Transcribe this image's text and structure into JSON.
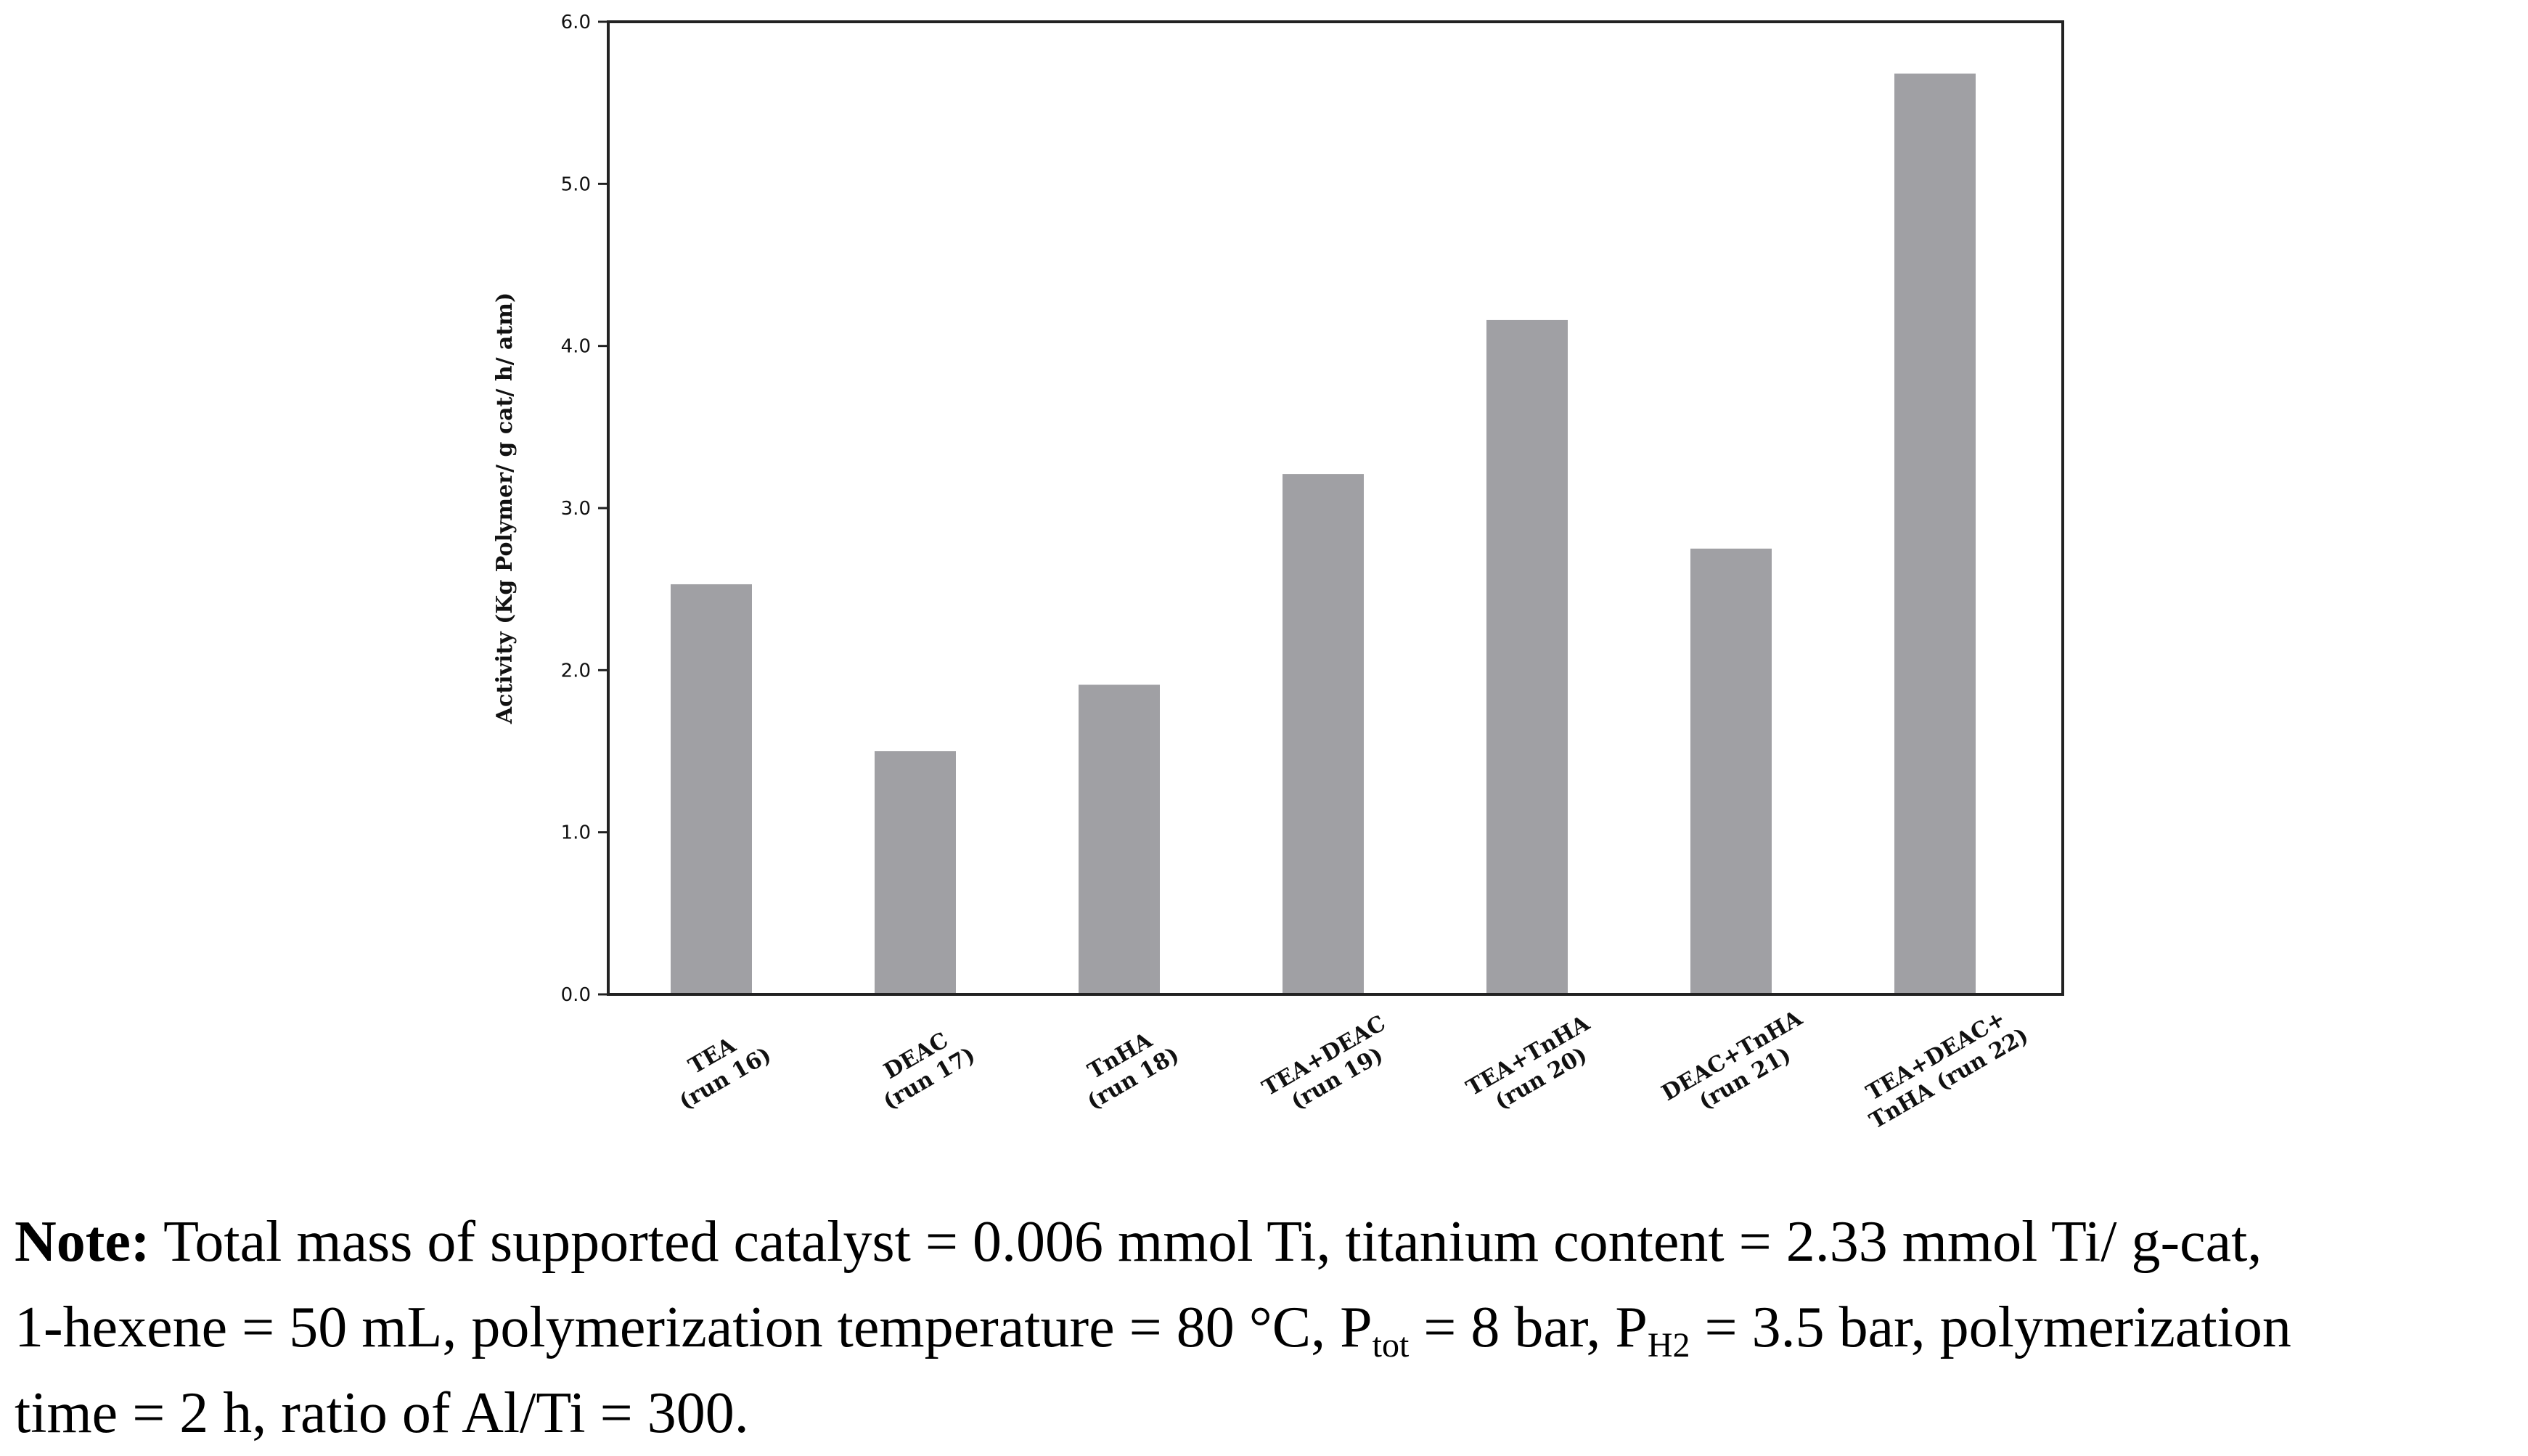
{
  "chart_data": {
    "type": "bar",
    "categories": [
      [
        "TEA",
        "(run 16)"
      ],
      [
        "DEAC",
        "(run 17)"
      ],
      [
        "TnHA",
        "(run 18)"
      ],
      [
        "TEA+DEAC",
        "(run 19)"
      ],
      [
        "TEA+TnHA",
        "(run 20)"
      ],
      [
        "DEAC+TnHA",
        "(run 21)"
      ],
      [
        "TEA+DEAC+",
        "TnHA  (run 22)"
      ]
    ],
    "values": [
      2.53,
      1.5,
      1.91,
      3.21,
      4.16,
      2.75,
      5.68
    ],
    "ylabel": "Activity (Kg Polymer/ g cat/ h/ atm)",
    "xlabel": "",
    "title": "",
    "ylim": [
      0,
      6
    ],
    "yticks": [
      "0.0",
      "1.0",
      "2.0",
      "3.0",
      "4.0",
      "5.0",
      "6.0"
    ],
    "bar_color": "#a0a0a4",
    "grid": false
  },
  "note": {
    "label": "Note:",
    "line1": " Total mass of supported catalyst = 0.006 mmol Ti, titanium content = 2.33 mmol Ti/ g-cat,",
    "line2a": "1-hexene = 50 mL, polymerization temperature = 80 °C, P",
    "line2_sub1": "tot",
    "line2b": " = 8 bar, P",
    "line2_sub2": "H2",
    "line2c": " = 3.5 bar, polymerization",
    "line3": "time = 2 h, ratio of Al/Ti = 300."
  }
}
